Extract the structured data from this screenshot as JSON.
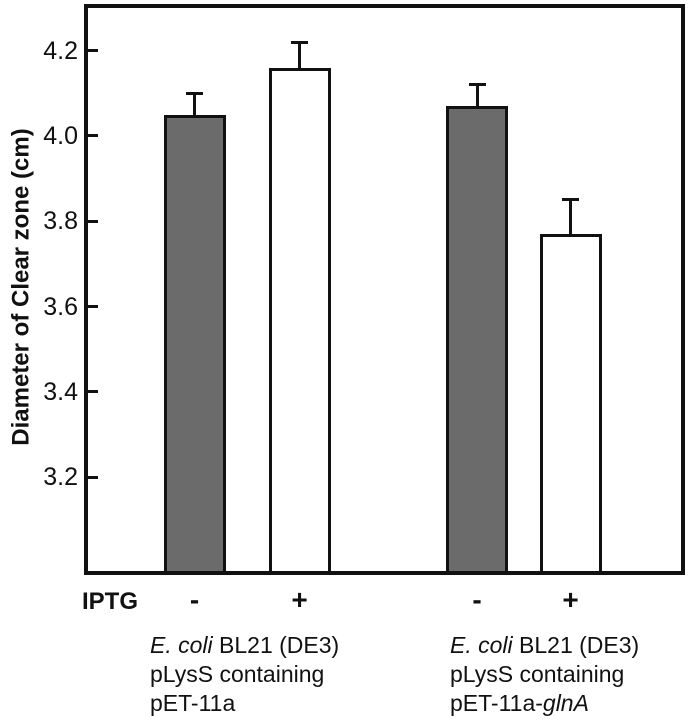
{
  "figure": {
    "background": "#ffffff",
    "frame_color": "#111111",
    "gray_fill": "#6b6b6b",
    "white_fill": "#ffffff"
  },
  "chart_data": {
    "type": "bar",
    "title": "",
    "ylabel": "Diameter of Clear zone (cm)",
    "xlabel": "IPTG",
    "ylim": [
      2.98,
      4.3
    ],
    "yticks": [
      4.2,
      4.0,
      3.8,
      3.6,
      3.4,
      3.2
    ],
    "grid": false,
    "legend": false,
    "categories": [
      "-",
      "+",
      "-",
      "+"
    ],
    "values": [
      4.05,
      4.16,
      4.07,
      3.77
    ],
    "errors": [
      0.05,
      0.06,
      0.05,
      0.08
    ],
    "bar_fills": [
      "#6b6b6b",
      "#ffffff",
      "#6b6b6b",
      "#ffffff"
    ],
    "groups": [
      {
        "lines": [
          [
            {
              "t": "E. coli",
              "i": true
            },
            {
              "t": " BL21 (DE3)",
              "i": false
            }
          ],
          [
            {
              "t": "pLysS containing",
              "i": false
            }
          ],
          [
            {
              "t": "pET-11a",
              "i": false
            }
          ]
        ]
      },
      {
        "lines": [
          [
            {
              "t": "E. coli",
              "i": true
            },
            {
              "t": " BL21 (DE3)",
              "i": false
            }
          ],
          [
            {
              "t": "pLysS containing",
              "i": false
            }
          ],
          [
            {
              "t": "pET-11a-",
              "i": false
            },
            {
              "t": "glnA",
              "i": true
            }
          ]
        ]
      }
    ]
  }
}
